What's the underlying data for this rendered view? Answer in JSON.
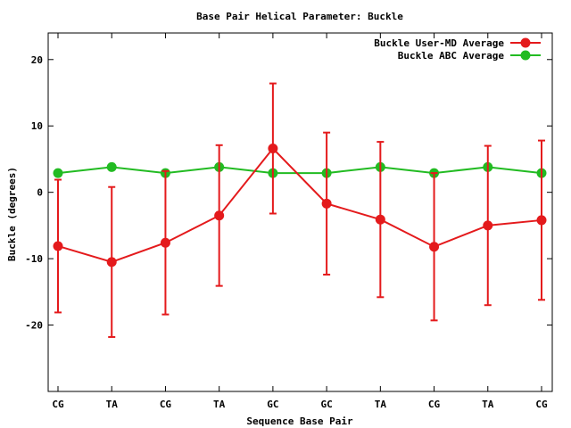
{
  "chart_data": {
    "type": "line",
    "title": "Base Pair Helical Parameter: Buckle",
    "xlabel": "Sequence Base Pair",
    "ylabel": "Buckle (degrees)",
    "categories": [
      "CG",
      "TA",
      "CG",
      "TA",
      "GC",
      "GC",
      "TA",
      "CG",
      "TA",
      "CG"
    ],
    "ylim": [
      -30,
      24
    ],
    "yticks": [
      -20,
      -10,
      0,
      10,
      20
    ],
    "legend_position": "top-right",
    "grid": false,
    "series": [
      {
        "name": "Buckle User-MD Average",
        "color": "#e41a1c",
        "values": [
          -8.1,
          -10.5,
          -7.6,
          -3.5,
          6.6,
          -1.7,
          -4.1,
          -8.2,
          -5.0,
          -4.2
        ],
        "error": [
          10.0,
          11.3,
          10.8,
          10.6,
          9.8,
          10.7,
          11.7,
          11.1,
          12.0,
          12.0
        ]
      },
      {
        "name": "Buckle ABC Average",
        "color": "#22bb22",
        "values": [
          2.9,
          3.8,
          2.9,
          3.8,
          2.9,
          2.9,
          3.8,
          2.9,
          3.8,
          2.9
        ]
      }
    ]
  }
}
